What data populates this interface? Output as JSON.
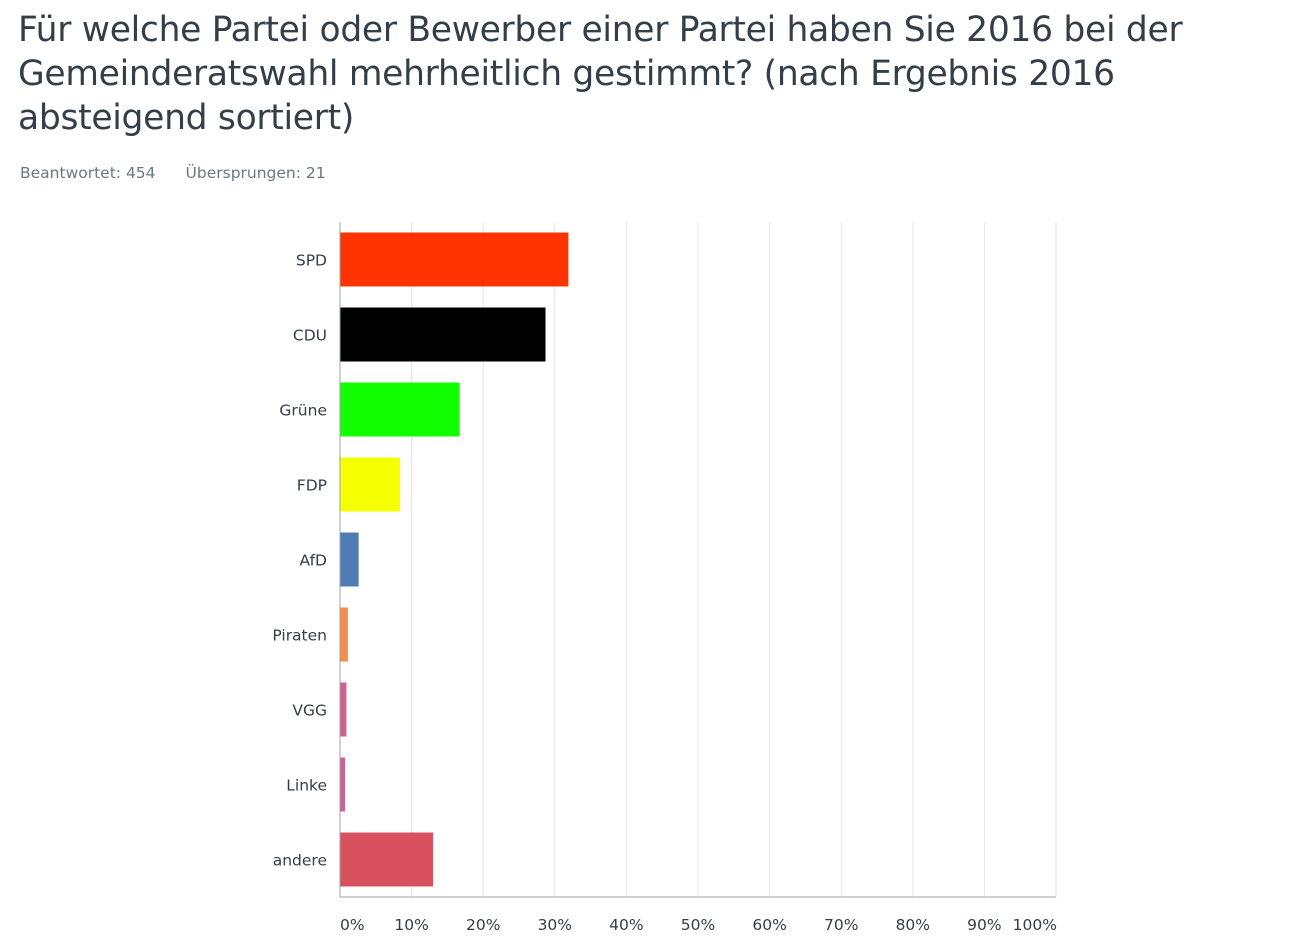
{
  "title": "Für welche Partei oder Bewerber einer Partei haben Sie 2016 bei der Gemeinderatswahl mehrheitlich gestimmt? (nach Ergebnis 2016 absteigend sortiert)",
  "stats": {
    "answered": "Beantwortet: 454",
    "skipped": "Übersprungen: 21"
  },
  "chart_data": {
    "type": "bar",
    "orientation": "horizontal",
    "categories": [
      "SPD",
      "CDU",
      "Grüne",
      "FDP",
      "AfD",
      "Piraten",
      "VGG",
      "Linke",
      "andere"
    ],
    "values": [
      31.9,
      28.7,
      16.7,
      8.4,
      2.6,
      1.1,
      0.9,
      0.7,
      13.0
    ],
    "colors": [
      "#ff3300",
      "#000000",
      "#11ff00",
      "#f5ff00",
      "#507cb6",
      "#f78c4b",
      "#d25f90",
      "#d25f90",
      "#d9505e"
    ],
    "xlim": [
      0,
      100
    ],
    "xticks": [
      "0%",
      "10%",
      "20%",
      "30%",
      "40%",
      "50%",
      "60%",
      "70%",
      "80%",
      "90%",
      "100%"
    ],
    "grid": true,
    "legend": "none"
  }
}
